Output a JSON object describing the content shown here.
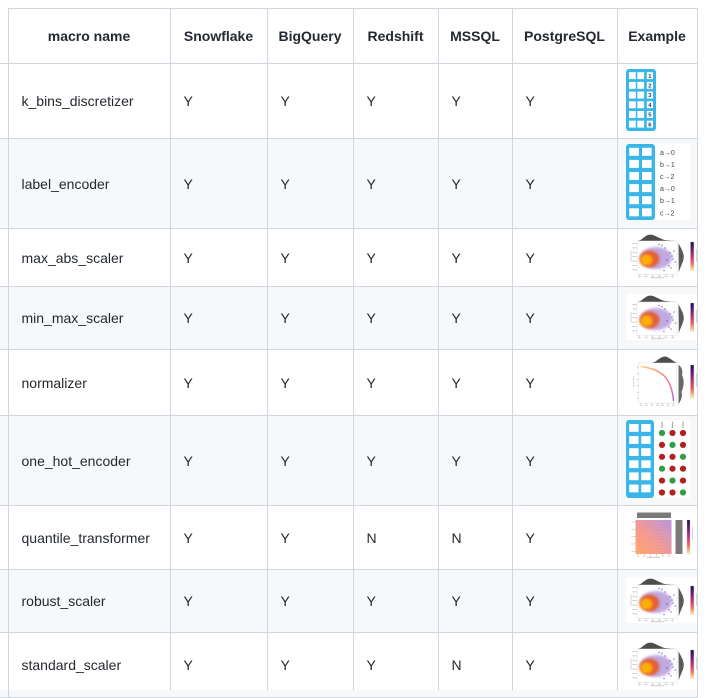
{
  "table": {
    "header": [
      "macro name",
      "Snowflake",
      "BigQuery",
      "Redshift",
      "MSSQL",
      "PostgreSQL",
      "Example"
    ],
    "db_keys": [
      "snowflake",
      "bigquery",
      "redshift",
      "mssql",
      "postgresql"
    ],
    "rows": [
      {
        "macro_name": "k_bins_discretizer",
        "snowflake": "Y",
        "bigquery": "Y",
        "redshift": "Y",
        "mssql": "Y",
        "postgresql": "Y",
        "example": "kbins-table-icon"
      },
      {
        "macro_name": "label_encoder",
        "snowflake": "Y",
        "bigquery": "Y",
        "redshift": "Y",
        "mssql": "Y",
        "postgresql": "Y",
        "example": "label-mapping-icon"
      },
      {
        "macro_name": "max_abs_scaler",
        "snowflake": "Y",
        "bigquery": "Y",
        "redshift": "Y",
        "mssql": "Y",
        "postgresql": "Y",
        "example": "scatter-jointplot-icon"
      },
      {
        "macro_name": "min_max_scaler",
        "snowflake": "Y",
        "bigquery": "Y",
        "redshift": "Y",
        "mssql": "Y",
        "postgresql": "Y",
        "example": "scatter-jointplot-icon"
      },
      {
        "macro_name": "normalizer",
        "snowflake": "Y",
        "bigquery": "Y",
        "redshift": "Y",
        "mssql": "Y",
        "postgresql": "Y",
        "example": "curve-jointplot-icon"
      },
      {
        "macro_name": "one_hot_encoder",
        "snowflake": "Y",
        "bigquery": "Y",
        "redshift": "Y",
        "mssql": "Y",
        "postgresql": "Y",
        "example": "one-hot-dots-icon"
      },
      {
        "macro_name": "quantile_transformer",
        "snowflake": "Y",
        "bigquery": "Y",
        "redshift": "N",
        "mssql": "N",
        "postgresql": "Y",
        "example": "quantile-heatmap-icon"
      },
      {
        "macro_name": "robust_scaler",
        "snowflake": "Y",
        "bigquery": "Y",
        "redshift": "Y",
        "mssql": "Y",
        "postgresql": "Y",
        "example": "scatter-jointplot-icon"
      },
      {
        "macro_name": "standard_scaler",
        "snowflake": "Y",
        "bigquery": "Y",
        "redshift": "Y",
        "mssql": "N",
        "postgresql": "Y",
        "example": "scatter-jointplot-icon"
      }
    ]
  },
  "icon_data": {
    "kbins_bin_labels": [
      "1",
      "2",
      "3",
      "4",
      "5",
      "6"
    ],
    "label_mappings": [
      "a→0",
      "b→1",
      "c→2",
      "a→0",
      "b→1",
      "c→2"
    ],
    "one_hot_pattern": [
      [
        1,
        0,
        0
      ],
      [
        0,
        1,
        0
      ],
      [
        0,
        0,
        1
      ],
      [
        1,
        0,
        0
      ],
      [
        0,
        1,
        0
      ],
      [
        0,
        0,
        1
      ]
    ]
  },
  "colors": {
    "table_border": "#d0d7de",
    "row_stripe": "#f6f8fa",
    "text": "#24292f",
    "icon_table_blue": "#3ab6e8",
    "bin_number_navy": "#1a3f6e",
    "one_hot_true_green": "#2f9e44",
    "one_hot_false_red": "#b42020",
    "density_gray": "#4d4d4d",
    "blob_core_yellow": "#ffb300",
    "blob_mid_orange": "#e8541e",
    "blob_outer_purple": "#8454c8"
  }
}
